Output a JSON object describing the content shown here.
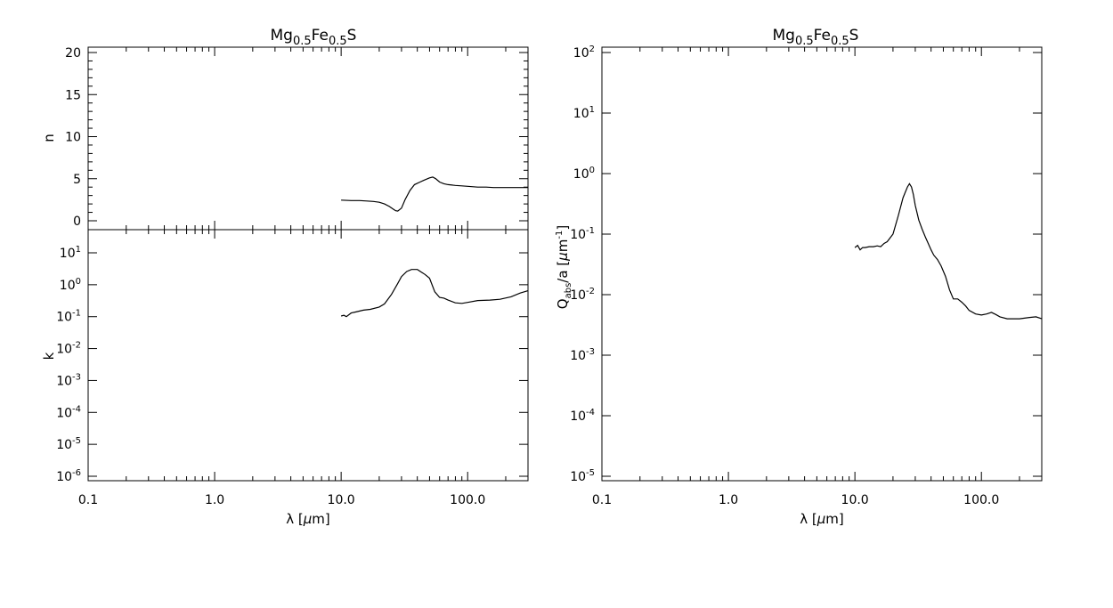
{
  "chart_data": [
    {
      "type": "line",
      "title": {
        "base": "Mg",
        "sub1": "0.5",
        "mid": "Fe",
        "sub2": "0.5",
        "tail": "S"
      },
      "xlabel": {
        "pre": "λ [",
        "mu": "μ",
        "post": "m]"
      },
      "x_scale": "log",
      "xlim": [
        0.1,
        300
      ],
      "x_ticklabels": [
        "0.1",
        "1.0",
        "10.0",
        "100.0"
      ],
      "panels": [
        {
          "name": "n",
          "ylabel": "n",
          "y_scale": "linear",
          "ylim": [
            -1,
            20
          ],
          "y_ticklabels": [
            "0",
            "5",
            "10",
            "15",
            "20"
          ],
          "series": [
            {
              "x": [
                10,
                12,
                14,
                16,
                18,
                20,
                22,
                24,
                26,
                27,
                28,
                30,
                32,
                35,
                38,
                42,
                45,
                50,
                53,
                56,
                60,
                65,
                70,
                80,
                90,
                100,
                120,
                140,
                160,
                200,
                250,
                300
              ],
              "y": [
                2.45,
                2.4,
                2.4,
                2.35,
                2.3,
                2.2,
                2.0,
                1.7,
                1.35,
                1.2,
                1.15,
                1.5,
                2.5,
                3.6,
                4.3,
                4.6,
                4.8,
                5.1,
                5.2,
                5.0,
                4.6,
                4.4,
                4.3,
                4.2,
                4.15,
                4.1,
                4.0,
                4.0,
                3.95,
                3.95,
                3.95,
                3.95
              ]
            }
          ]
        },
        {
          "name": "k",
          "ylabel": "k",
          "y_scale": "log",
          "ylim": [
            6e-07,
            40
          ],
          "y_ticklabels": [
            {
              "base": "10",
              "exp": "1"
            },
            {
              "base": "10",
              "exp": "0"
            },
            {
              "base": "10",
              "exp": "-1"
            },
            {
              "base": "10",
              "exp": "-2"
            },
            {
              "base": "10",
              "exp": "-3"
            },
            {
              "base": "10",
              "exp": "-4"
            },
            {
              "base": "10",
              "exp": "-5"
            },
            {
              "base": "10",
              "exp": "-6"
            }
          ],
          "series": [
            {
              "x": [
                10,
                10.5,
                11,
                12,
                13,
                15,
                17,
                20,
                22,
                25,
                28,
                30,
                33,
                36,
                40,
                43,
                46,
                50,
                55,
                60,
                65,
                70,
                80,
                90,
                100,
                120,
                150,
                180,
                220,
                260,
                300
              ],
              "y": [
                0.105,
                0.11,
                0.1,
                0.13,
                0.14,
                0.16,
                0.17,
                0.2,
                0.25,
                0.5,
                1.1,
                1.8,
                2.6,
                3.0,
                3.0,
                2.5,
                2.1,
                1.6,
                0.6,
                0.4,
                0.38,
                0.33,
                0.27,
                0.26,
                0.28,
                0.32,
                0.33,
                0.35,
                0.42,
                0.55,
                0.65
              ]
            }
          ]
        }
      ]
    },
    {
      "type": "line",
      "title": {
        "base": "Mg",
        "sub1": "0.5",
        "mid": "Fe",
        "sub2": "0.5",
        "tail": "S"
      },
      "xlabel": {
        "pre": "λ [",
        "mu": "μ",
        "post": "m]"
      },
      "ylabel": {
        "q": "Q",
        "sub": "abs",
        "mid": "/a [",
        "mu": "μ",
        "post": "m",
        "exp": "-1",
        "close": "]"
      },
      "x_scale": "log",
      "y_scale": "log",
      "xlim": [
        0.1,
        300
      ],
      "ylim": [
        1e-05,
        100
      ],
      "x_ticklabels": [
        "0.1",
        "1.0",
        "10.0",
        "100.0"
      ],
      "y_ticklabels": [
        {
          "base": "10",
          "exp": "2"
        },
        {
          "base": "10",
          "exp": "1"
        },
        {
          "base": "10",
          "exp": "0"
        },
        {
          "base": "10",
          "exp": "-1"
        },
        {
          "base": "10",
          "exp": "-2"
        },
        {
          "base": "10",
          "exp": "-3"
        },
        {
          "base": "10",
          "exp": "-4"
        },
        {
          "base": "10",
          "exp": "-5"
        }
      ],
      "series": [
        {
          "x": [
            10,
            10.5,
            11,
            11.5,
            12,
            13,
            14,
            15,
            16,
            17,
            18,
            20,
            22,
            24,
            26,
            27,
            28,
            29,
            30,
            32,
            34,
            36,
            38,
            40,
            42,
            45,
            48,
            52,
            56,
            60,
            65,
            70,
            75,
            80,
            90,
            100,
            110,
            120,
            130,
            140,
            160,
            200,
            240,
            270,
            300
          ],
          "y": [
            0.06,
            0.065,
            0.055,
            0.06,
            0.06,
            0.062,
            0.062,
            0.064,
            0.062,
            0.07,
            0.075,
            0.1,
            0.2,
            0.4,
            0.6,
            0.68,
            0.6,
            0.45,
            0.3,
            0.17,
            0.12,
            0.09,
            0.07,
            0.055,
            0.045,
            0.038,
            0.03,
            0.02,
            0.012,
            0.0085,
            0.0085,
            0.0075,
            0.0065,
            0.0055,
            0.0048,
            0.0046,
            0.0048,
            0.0051,
            0.0047,
            0.0043,
            0.004,
            0.004,
            0.0042,
            0.0043,
            0.004
          ]
        }
      ]
    }
  ]
}
